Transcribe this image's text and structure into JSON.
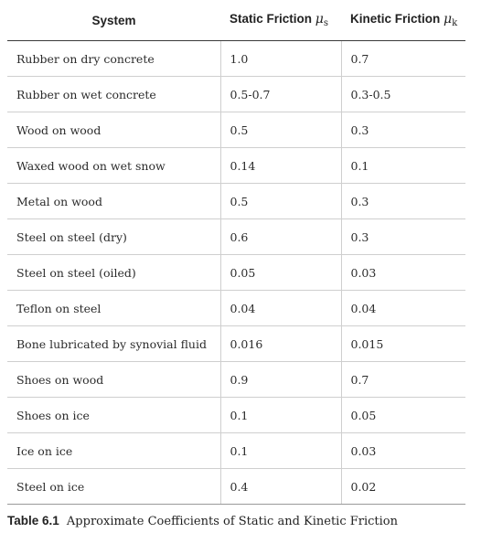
{
  "table": {
    "headers": {
      "system": "System",
      "static": "Static Friction",
      "static_symbol": "μ",
      "static_sub": "s",
      "kinetic": "Kinetic Friction",
      "kinetic_symbol": "μ",
      "kinetic_sub": "k"
    },
    "rows": [
      {
        "system": "Rubber on dry concrete",
        "static": "1.0",
        "kinetic": "0.7"
      },
      {
        "system": "Rubber on wet concrete",
        "static": "0.5-0.7",
        "kinetic": "0.3-0.5"
      },
      {
        "system": "Wood on wood",
        "static": "0.5",
        "kinetic": "0.3"
      },
      {
        "system": "Waxed wood on wet snow",
        "static": "0.14",
        "kinetic": "0.1"
      },
      {
        "system": "Metal on wood",
        "static": "0.5",
        "kinetic": "0.3"
      },
      {
        "system": "Steel on steel (dry)",
        "static": "0.6",
        "kinetic": "0.3"
      },
      {
        "system": "Steel on steel (oiled)",
        "static": "0.05",
        "kinetic": "0.03"
      },
      {
        "system": "Teflon on steel",
        "static": "0.04",
        "kinetic": "0.04"
      },
      {
        "system": "Bone lubricated by synovial fluid",
        "static": "0.016",
        "kinetic": "0.015"
      },
      {
        "system": "Shoes on wood",
        "static": "0.9",
        "kinetic": "0.7"
      },
      {
        "system": "Shoes on ice",
        "static": "0.1",
        "kinetic": "0.05"
      },
      {
        "system": "Ice on ice",
        "static": "0.1",
        "kinetic": "0.03"
      },
      {
        "system": "Steel on ice",
        "static": "0.4",
        "kinetic": "0.02"
      }
    ]
  },
  "caption": {
    "label": "Table 6.1",
    "text": "Approximate Coefficients of Static and Kinetic Friction"
  }
}
